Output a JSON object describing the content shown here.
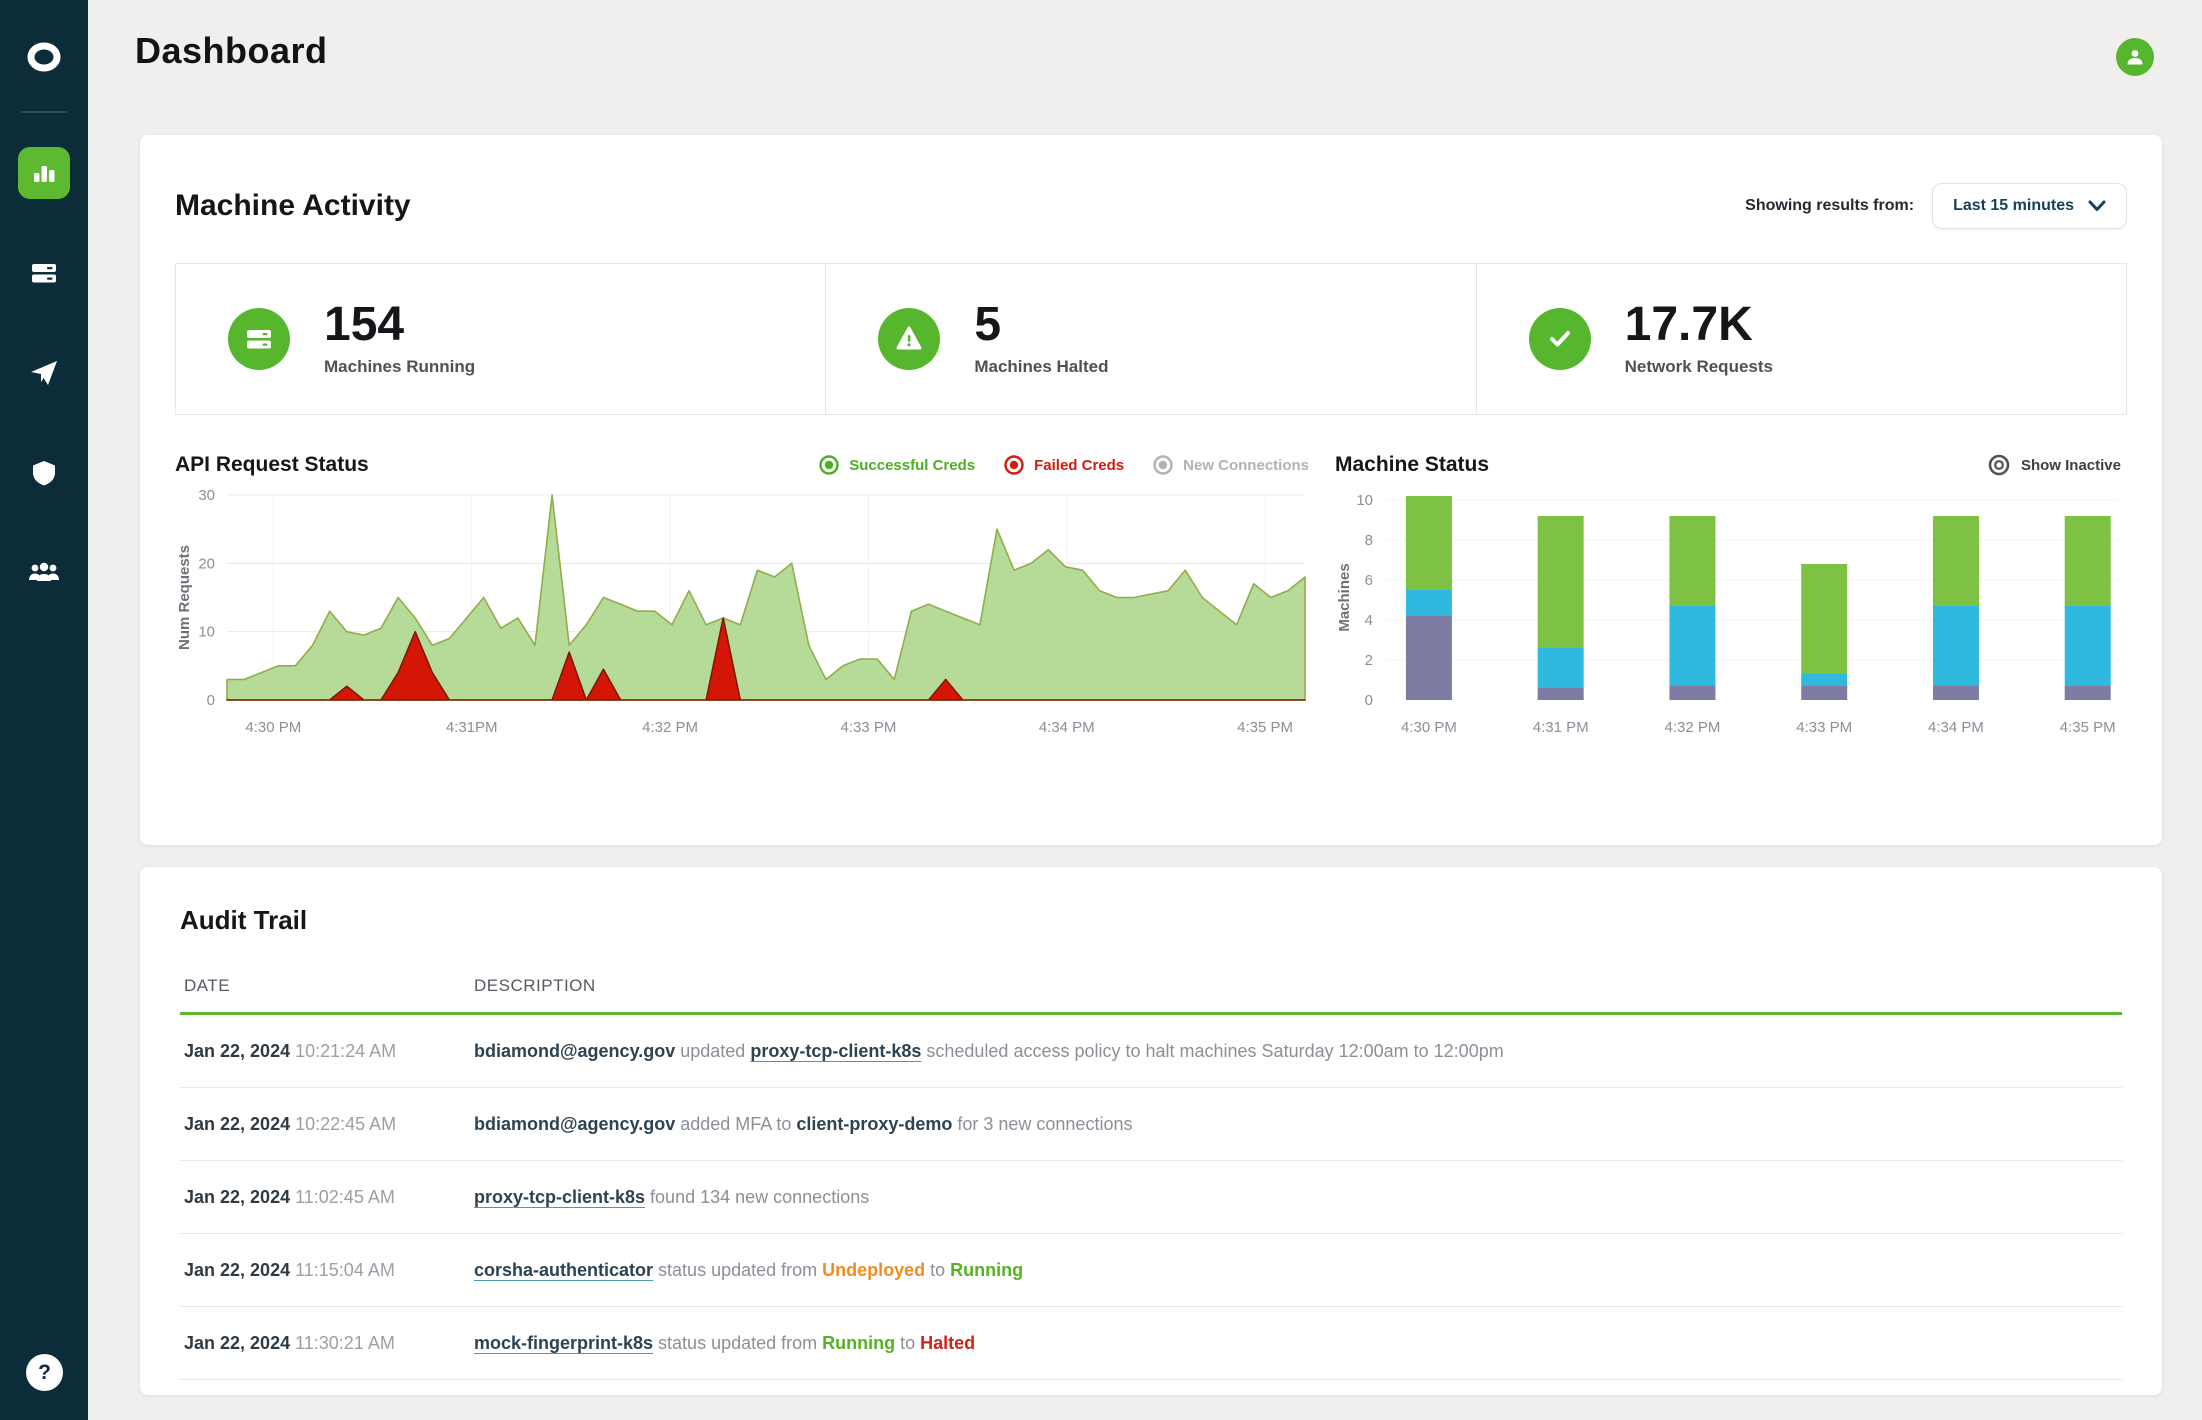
{
  "app": {
    "title": "Dashboard"
  },
  "sidebar": {
    "logo_icon": "corsha-ring-logo",
    "items": [
      {
        "icon": "bar-chart-icon",
        "active": true
      },
      {
        "icon": "machines-icon",
        "active": false
      },
      {
        "icon": "connections-icon",
        "active": false
      },
      {
        "icon": "shield-icon",
        "active": false
      },
      {
        "icon": "users-icon",
        "active": false
      }
    ],
    "help_label": "?"
  },
  "header": {
    "avatar_icon": "user-avatar"
  },
  "machine_activity": {
    "title": "Machine Activity",
    "filter_label": "Showing results from:",
    "filter_value": "Last 15 minutes",
    "stats": [
      {
        "icon": "machines-running-icon",
        "value": "154",
        "label": "Machines Running"
      },
      {
        "icon": "machines-halted-icon",
        "value": "5",
        "label": "Machines Halted"
      },
      {
        "icon": "network-requests-icon",
        "value": "17.7K",
        "label": "Network Requests"
      }
    ]
  },
  "chart_data": [
    {
      "type": "area",
      "title": "API Request Status",
      "ylabel": "Num Requests",
      "xlabel": "",
      "ylim": [
        0,
        30
      ],
      "yticks": [
        0,
        10,
        20,
        30
      ],
      "grid": true,
      "x_labels": [
        "4:30 PM",
        "4:31PM",
        "4:32 PM",
        "4:33 PM",
        "4:34 PM",
        "4:35 PM"
      ],
      "legend": [
        {
          "label": "Successful Creds",
          "color": "#4caf22"
        },
        {
          "label": "Failed Creds",
          "color": "#d41b0c"
        },
        {
          "label": "New Connections",
          "color": "#b2b2b2"
        }
      ],
      "series": [
        {
          "name": "Successful Creds",
          "fill": "#b6db99",
          "stroke": "#8fae4a",
          "values": [
            3,
            3,
            4,
            5,
            5,
            8,
            13,
            10,
            9.5,
            10.5,
            15,
            12,
            8,
            9,
            12,
            15,
            10.5,
            12,
            8,
            30,
            8,
            11,
            15,
            14,
            13,
            13,
            11,
            16,
            11,
            12,
            11,
            19,
            18,
            20,
            8,
            3,
            5,
            6,
            6,
            3,
            13,
            14,
            13,
            12,
            11,
            25,
            19,
            20,
            22,
            19.5,
            19,
            16,
            15,
            15,
            15.5,
            16,
            19,
            15,
            13,
            11,
            17,
            15,
            16,
            18
          ]
        },
        {
          "name": "Failed Creds",
          "fill": "#d41607",
          "stroke": "#7e1a02",
          "values": [
            0,
            0,
            0,
            0,
            0,
            0,
            0,
            2,
            0,
            0,
            4,
            10,
            4,
            0,
            0,
            0,
            0,
            0,
            0,
            0,
            7,
            0,
            4.5,
            0,
            0,
            0,
            0,
            0,
            0,
            12,
            0,
            0,
            0,
            0,
            0,
            0,
            0,
            0,
            0,
            0,
            0,
            0,
            3,
            0,
            0,
            0,
            0,
            0,
            0,
            0,
            0,
            0,
            0,
            0,
            0,
            0,
            0,
            0,
            0,
            0,
            0,
            0,
            0,
            0
          ]
        }
      ]
    },
    {
      "type": "stacked-bar",
      "title": "Machine Status",
      "toggle_label": "Show Inactive",
      "ylabel": "Machines",
      "xlabel": "",
      "ylim": [
        0,
        10.25
      ],
      "yticks": [
        0,
        2,
        4,
        6,
        8,
        10
      ],
      "grid": true,
      "categories": [
        "4:30 PM",
        "4:31 PM",
        "4:32 PM",
        "4:33 PM",
        "4:34 PM",
        "4:35 PM"
      ],
      "series": [
        {
          "name": "purple",
          "color": "#7e7ca2",
          "values": [
            4.2,
            0.6,
            0.7,
            0.7,
            0.7,
            0.7
          ]
        },
        {
          "name": "blue",
          "color": "#30b9de",
          "values": [
            1.3,
            2.0,
            4.0,
            0.6,
            4.0,
            4.0
          ]
        },
        {
          "name": "green",
          "color": "#7dc242",
          "values": [
            4.7,
            6.6,
            4.5,
            5.5,
            4.5,
            4.5
          ]
        }
      ]
    }
  ],
  "audit": {
    "title": "Audit Trail",
    "columns": [
      "DATE",
      "DESCRIPTION"
    ],
    "rows": [
      {
        "date": "Jan 22, 2024",
        "time": "10:21:24 AM",
        "segments": [
          {
            "style": "entity",
            "text": "bdiamond@agency.gov"
          },
          {
            "style": "text",
            "text": " updated "
          },
          {
            "style": "link",
            "text": "proxy-tcp-client-k8s"
          },
          {
            "style": "text",
            "text": " scheduled access policy to halt machines Saturday 12:00am to 12:00pm"
          }
        ]
      },
      {
        "date": "Jan 22, 2024",
        "time": "10:22:45 AM",
        "segments": [
          {
            "style": "entity",
            "text": "bdiamond@agency.gov"
          },
          {
            "style": "text",
            "text": " added MFA to "
          },
          {
            "style": "entity",
            "text": "client-proxy-demo"
          },
          {
            "style": "text",
            "text": " for 3 new connections"
          }
        ]
      },
      {
        "date": "Jan 22, 2024",
        "time": "11:02:45 AM",
        "segments": [
          {
            "style": "link",
            "text": "proxy-tcp-client-k8s"
          },
          {
            "style": "text",
            "text": " found 134 new connections"
          }
        ]
      },
      {
        "date": "Jan 22, 2024",
        "time": "11:15:04 AM",
        "segments": [
          {
            "style": "link",
            "text": "corsha-authenticator"
          },
          {
            "style": "text",
            "text": " status updated from "
          },
          {
            "style": "status-orange",
            "text": "Undeployed"
          },
          {
            "style": "text",
            "text": " to "
          },
          {
            "style": "status-green",
            "text": "Running"
          }
        ]
      },
      {
        "date": "Jan 22, 2024",
        "time": "11:30:21 AM",
        "segments": [
          {
            "style": "link",
            "text": "mock-fingerprint-k8s"
          },
          {
            "style": "text",
            "text": " status updated from "
          },
          {
            "style": "status-green",
            "text": "Running"
          },
          {
            "style": "text",
            "text": " to "
          },
          {
            "style": "status-red",
            "text": "Halted"
          }
        ]
      }
    ]
  },
  "colors": {
    "sidebar_bg": "#0d2c39",
    "accent_green": "#5cb733",
    "stat_circle_green": "#56b62e",
    "status_orange": "#ef8d1e",
    "status_green": "#54b41f",
    "status_red": "#d42216"
  }
}
